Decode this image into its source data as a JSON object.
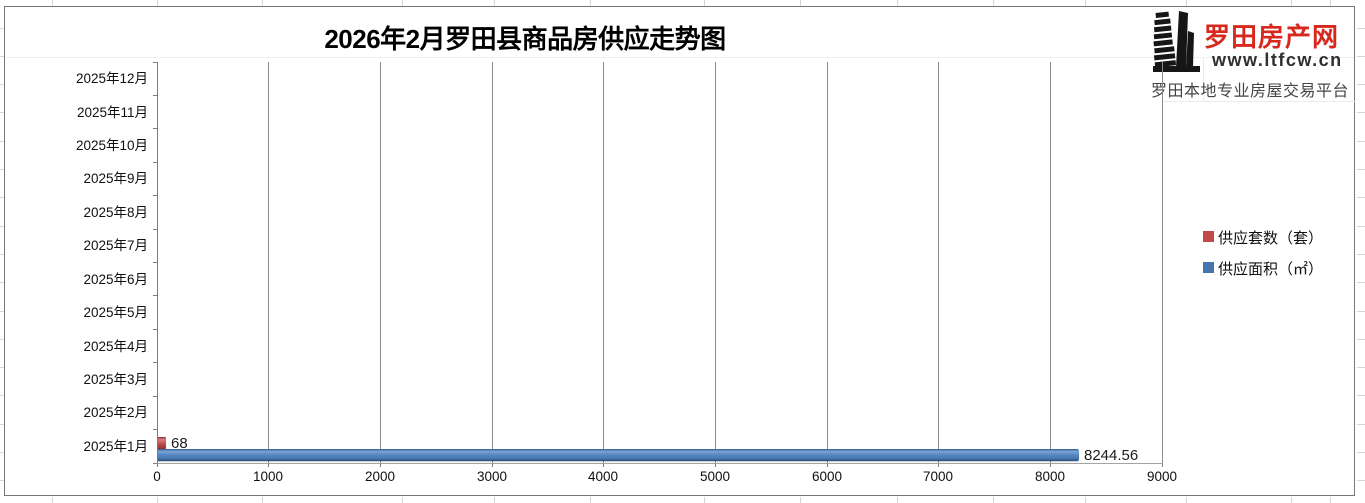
{
  "chart": {
    "title": "2026年2月罗田县商品房供应走势图"
  },
  "logo": {
    "site_name": "罗田房产网",
    "site_url": "www.ltfcw.cn",
    "tagline": "罗田本地专业房屋交易平台",
    "brand_color": "#d7281e",
    "icon": "building-icon"
  },
  "legend": {
    "position": "right",
    "items": [
      {
        "label": "供应套数（套）",
        "color": "#be4b48"
      },
      {
        "label": "供应面积（㎡）",
        "color": "#4475ae"
      }
    ]
  },
  "chart_data": {
    "type": "bar",
    "orientation": "horizontal",
    "title": "2026年2月罗田县商品房供应走势图",
    "categories_top_to_bottom": [
      "2025年12月",
      "2025年11月",
      "2025年10月",
      "2025年9月",
      "2025年8月",
      "2025年7月",
      "2025年6月",
      "2025年5月",
      "2025年4月",
      "2025年3月",
      "2025年2月",
      "2025年1月"
    ],
    "series": [
      {
        "name": "供应套数（套）",
        "color": "#c0504d",
        "values_top_to_bottom": [
          0,
          0,
          0,
          0,
          0,
          0,
          0,
          0,
          0,
          0,
          0,
          68
        ]
      },
      {
        "name": "供应面积（㎡）",
        "color": "#4f81bd",
        "values_top_to_bottom": [
          0,
          0,
          0,
          0,
          0,
          0,
          0,
          0,
          0,
          0,
          0,
          8244.56
        ]
      }
    ],
    "data_labels_visible": [
      "68",
      "8244.56"
    ],
    "x_axis": {
      "min": 0,
      "max": 9000,
      "tick_step": 1000,
      "tick_labels": [
        "0",
        "1000",
        "2000",
        "3000",
        "4000",
        "5000",
        "6000",
        "7000",
        "8000",
        "9000"
      ]
    },
    "y_axis_label": "",
    "x_axis_label": "",
    "gridlines": "vertical-only",
    "legend_position": "right"
  }
}
